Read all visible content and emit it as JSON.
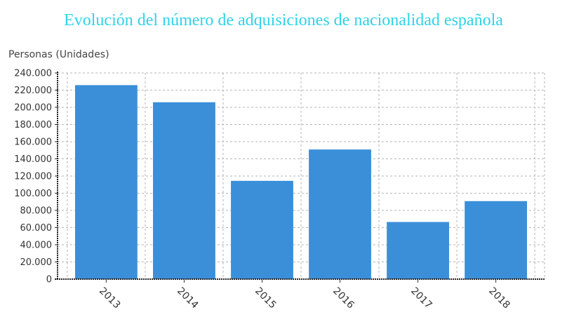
{
  "chart_data": {
    "type": "bar",
    "title": "Evolución del número de adquisiciones de nacionalidad española",
    "ylabel": "Personas (Unidades)",
    "xlabel": "",
    "categories": [
      "2013",
      "2014",
      "2015",
      "2016",
      "2017",
      "2018"
    ],
    "values": [
      225800,
      205900,
      114400,
      150900,
      66500,
      90800
    ],
    "ylim": [
      0,
      240000
    ],
    "yticks": [
      0,
      20000,
      40000,
      60000,
      80000,
      100000,
      120000,
      140000,
      160000,
      180000,
      200000,
      220000,
      240000
    ],
    "ytick_labels": [
      "0",
      "20.000",
      "40.000",
      "60.000",
      "80.000",
      "100.000",
      "120.000",
      "140.000",
      "160.000",
      "180.000",
      "200.000",
      "220.000",
      "240.000"
    ],
    "grid": true,
    "legend": "none",
    "bar_color": "#3b8fd9",
    "grid_color": "#b5b5b5",
    "title_color": "#2fd3e8"
  }
}
